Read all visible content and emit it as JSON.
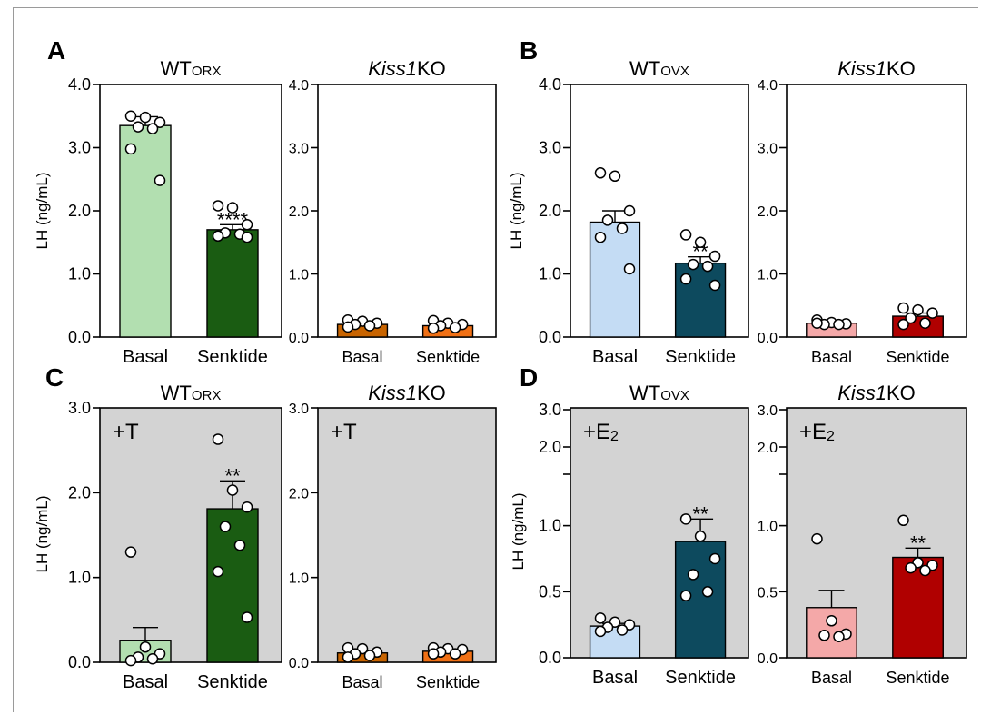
{
  "panels": [
    {
      "letter": "A"
    },
    {
      "letter": "B"
    },
    {
      "letter": "C"
    },
    {
      "letter": "D"
    }
  ],
  "chart_data": [
    {
      "panel": "A",
      "type": "bar",
      "title": "WTORX",
      "title_main": "WT",
      "title_sub": "ORX",
      "title_italic": "",
      "ylabel": "LH (ng/mL)",
      "ylim": [
        0,
        4
      ],
      "yticks": [
        "0.0",
        "1.0",
        "2.0",
        "3.0",
        "4.0"
      ],
      "yticks_values": [
        0,
        1,
        2,
        3,
        4
      ],
      "categories": [
        "Basal",
        "Senktide"
      ],
      "values": [
        3.35,
        1.7
      ],
      "errors": [
        0.14,
        0.08
      ],
      "colors": [
        "#b2dfb0",
        "#1a5c12"
      ],
      "annotations": [
        "",
        "****"
      ],
      "points": [
        [
          3.5,
          3.48,
          3.4,
          3.33,
          3.3,
          2.98,
          2.48
        ],
        [
          2.08,
          2.05,
          1.78,
          1.65,
          1.63,
          1.6,
          1.58
        ]
      ],
      "background": "#ffffff",
      "inset_label": ""
    },
    {
      "panel": "A",
      "type": "bar",
      "title": "Kiss1KO",
      "title_main": "",
      "title_sub": "",
      "title_italic": "Kiss1",
      "title_rest": "KO",
      "ylabel": "",
      "ylim": [
        0,
        4
      ],
      "yticks": [
        "0.0",
        "1.0",
        "2.0",
        "3.0",
        "4.0"
      ],
      "yticks_values": [
        0,
        1,
        2,
        3,
        4
      ],
      "categories": [
        "Basal",
        "Senktide"
      ],
      "values": [
        0.2,
        0.18
      ],
      "errors": [
        0.02,
        0.02
      ],
      "colors": [
        "#c86400",
        "#f07015"
      ],
      "annotations": [
        "",
        ""
      ],
      "points": [
        [
          0.27,
          0.25,
          0.22,
          0.2,
          0.18,
          0.16
        ],
        [
          0.26,
          0.22,
          0.2,
          0.18,
          0.15,
          0.14
        ]
      ],
      "background": "#ffffff",
      "inset_label": ""
    },
    {
      "panel": "B",
      "type": "bar",
      "title": "WTOVX",
      "title_main": "WT",
      "title_sub": "OVX",
      "title_italic": "",
      "ylabel": "LH (ng/mL)",
      "ylim": [
        0,
        4
      ],
      "yticks": [
        "0.0",
        "1.0",
        "2.0",
        "3.0",
        "4.0"
      ],
      "yticks_values": [
        0,
        1,
        2,
        3,
        4
      ],
      "categories": [
        "Basal",
        "Senktide"
      ],
      "values": [
        1.82,
        1.17
      ],
      "errors": [
        0.18,
        0.1
      ],
      "colors": [
        "#c4dcf4",
        "#0d4a5e"
      ],
      "annotations": [
        "",
        "**"
      ],
      "points": [
        [
          2.6,
          2.55,
          2.0,
          1.85,
          1.72,
          1.58,
          1.08
        ],
        [
          1.62,
          1.5,
          1.28,
          1.15,
          1.12,
          0.92,
          0.82
        ]
      ],
      "background": "#ffffff",
      "inset_label": ""
    },
    {
      "panel": "B",
      "type": "bar",
      "title": "Kiss1KO",
      "title_main": "",
      "title_sub": "",
      "title_italic": "Kiss1",
      "title_rest": "KO",
      "ylabel": "",
      "ylim": [
        0,
        4
      ],
      "yticks": [
        "0.0",
        "1.0",
        "2.0",
        "3.0",
        "4.0"
      ],
      "yticks_values": [
        0,
        1,
        2,
        3,
        4
      ],
      "categories": [
        "Basal",
        "Senktide"
      ],
      "values": [
        0.22,
        0.33
      ],
      "errors": [
        0.02,
        0.05
      ],
      "colors": [
        "#f4a8a8",
        "#b00000"
      ],
      "annotations": [
        "",
        ""
      ],
      "points": [
        [
          0.27,
          0.23,
          0.21,
          0.2,
          0.2,
          0.22
        ],
        [
          0.46,
          0.43,
          0.38,
          0.3,
          0.22,
          0.2
        ]
      ],
      "background": "#ffffff",
      "inset_label": ""
    },
    {
      "panel": "C",
      "type": "bar",
      "title": "WTORX",
      "title_main": "WT",
      "title_sub": "ORX",
      "title_italic": "",
      "ylabel": "LH (ng/mL)",
      "ylim": [
        0,
        3
      ],
      "yticks": [
        "0.0",
        "1.0",
        "2.0",
        "3.0"
      ],
      "yticks_values": [
        0,
        1,
        2,
        3
      ],
      "categories": [
        "Basal",
        "Senktide"
      ],
      "values": [
        0.26,
        1.81
      ],
      "errors": [
        0.15,
        0.33
      ],
      "colors": [
        "#b2dfb0",
        "#1a5c12"
      ],
      "annotations": [
        "",
        "**"
      ],
      "points": [
        [
          1.3,
          0.18,
          0.1,
          0.06,
          0.04,
          0.02
        ],
        [
          2.63,
          2.03,
          1.83,
          1.6,
          1.38,
          1.07,
          0.53
        ]
      ],
      "background": "#d3d3d3",
      "inset_label": "+T",
      "inset_sub": ""
    },
    {
      "panel": "C",
      "type": "bar",
      "title": "Kiss1KO",
      "title_main": "",
      "title_sub": "",
      "title_italic": "Kiss1",
      "title_rest": "KO",
      "ylabel": "",
      "ylim": [
        0,
        3
      ],
      "yticks": [
        "0.0",
        "1.0",
        "2.0",
        "3.0"
      ],
      "yticks_values": [
        0,
        1,
        2,
        3
      ],
      "categories": [
        "Basal",
        "Senktide"
      ],
      "values": [
        0.11,
        0.13
      ],
      "errors": [
        0.02,
        0.02
      ],
      "colors": [
        "#c86400",
        "#f07015"
      ],
      "annotations": [
        "",
        ""
      ],
      "points": [
        [
          0.17,
          0.16,
          0.12,
          0.1,
          0.08,
          0.06
        ],
        [
          0.17,
          0.16,
          0.15,
          0.12,
          0.1,
          0.1
        ]
      ],
      "background": "#d3d3d3",
      "inset_label": "+T",
      "inset_sub": ""
    },
    {
      "panel": "D",
      "type": "bar",
      "title": "WTOVX",
      "title_main": "WT",
      "title_sub": "OVX",
      "title_italic": "",
      "ylabel": "LH (ng/mL)",
      "ylim": [
        0,
        1.3
      ],
      "axis_break": true,
      "yticks": [
        "0.0",
        "0.5",
        "1.0",
        "2.0",
        "3.0"
      ],
      "yticks_values": [
        0,
        0.5,
        1.0,
        2.0,
        3.0
      ],
      "categories": [
        "Basal",
        "Senktide"
      ],
      "values": [
        0.24,
        0.88
      ],
      "errors": [
        0.02,
        0.17
      ],
      "colors": [
        "#c4dcf4",
        "#0d4a5e"
      ],
      "annotations": [
        "",
        "**"
      ],
      "points": [
        [
          0.3,
          0.27,
          0.25,
          0.23,
          0.21,
          0.2
        ],
        [
          1.05,
          0.92,
          0.75,
          0.63,
          0.5,
          0.47
        ]
      ],
      "background": "#d3d3d3",
      "inset_label": "+E",
      "inset_sub": "2"
    },
    {
      "panel": "D",
      "type": "bar",
      "title": "Kiss1KO",
      "title_main": "",
      "title_sub": "",
      "title_italic": "Kiss1",
      "title_rest": "KO",
      "ylabel": "",
      "ylim": [
        0,
        1.3
      ],
      "axis_break": true,
      "yticks": [
        "0.0",
        "0.5",
        "1.0",
        "2.0",
        "3.0"
      ],
      "yticks_values": [
        0,
        0.5,
        1.0,
        2.0,
        3.0
      ],
      "categories": [
        "Basal",
        "Senktide"
      ],
      "values": [
        0.38,
        0.76
      ],
      "errors": [
        0.13,
        0.07
      ],
      "colors": [
        "#f4a8a8",
        "#b00000"
      ],
      "annotations": [
        "",
        "**"
      ],
      "points": [
        [
          0.9,
          0.28,
          0.18,
          0.17,
          0.16
        ],
        [
          1.04,
          0.72,
          0.7,
          0.68,
          0.66
        ]
      ],
      "background": "#d3d3d3",
      "inset_label": "+E",
      "inset_sub": "2"
    }
  ]
}
